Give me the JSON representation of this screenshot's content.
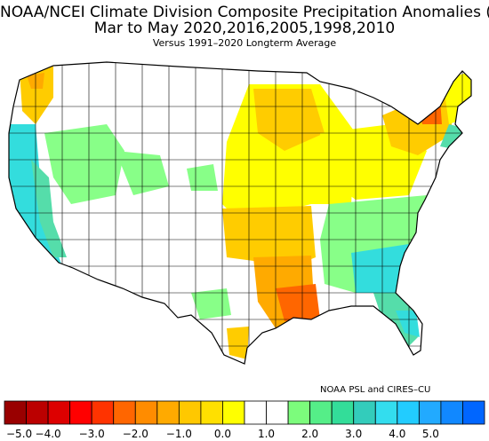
{
  "title": "NOAA/NCEI Climate Division Composite Precipitation Anomalies (in)",
  "subtitle": "Mar to May  2020,2016,2005,1998,2010",
  "baseline": "Versus 1991–2020 Longterm Average",
  "credit": "NOAA PSL and CIRES–CU",
  "legend": {
    "colors": [
      "#990000",
      "#bb0000",
      "#dd0000",
      "#ff0000",
      "#ff3300",
      "#ff6600",
      "#ff8c00",
      "#ffaa00",
      "#ffc800",
      "#ffe000",
      "#ffff00",
      "#ffffff",
      "#ffffff",
      "#7cfc7c",
      "#55ee88",
      "#33dd99",
      "#33ccbb",
      "#33ddee",
      "#22ccff",
      "#22aaff",
      "#1188ff",
      "#0066ff"
    ],
    "tick_labels": [
      "−5.0",
      "−4.0",
      "−3.0",
      "−2.0",
      "−1.0",
      "0.0",
      "1.0",
      "2.0",
      "3.0",
      "4.0",
      "5.0"
    ]
  },
  "map_colors": {
    "wet_strong": "#33dddd",
    "wet_medium": "#55ddaa",
    "wet_light": "#88ff88",
    "dry_light": "#ffff00",
    "dry_medium": "#ffcc00",
    "dry_strong": "#ffaa00",
    "dry_severe": "#ff6600",
    "neutral": "#ffffff",
    "border": "#000000"
  }
}
